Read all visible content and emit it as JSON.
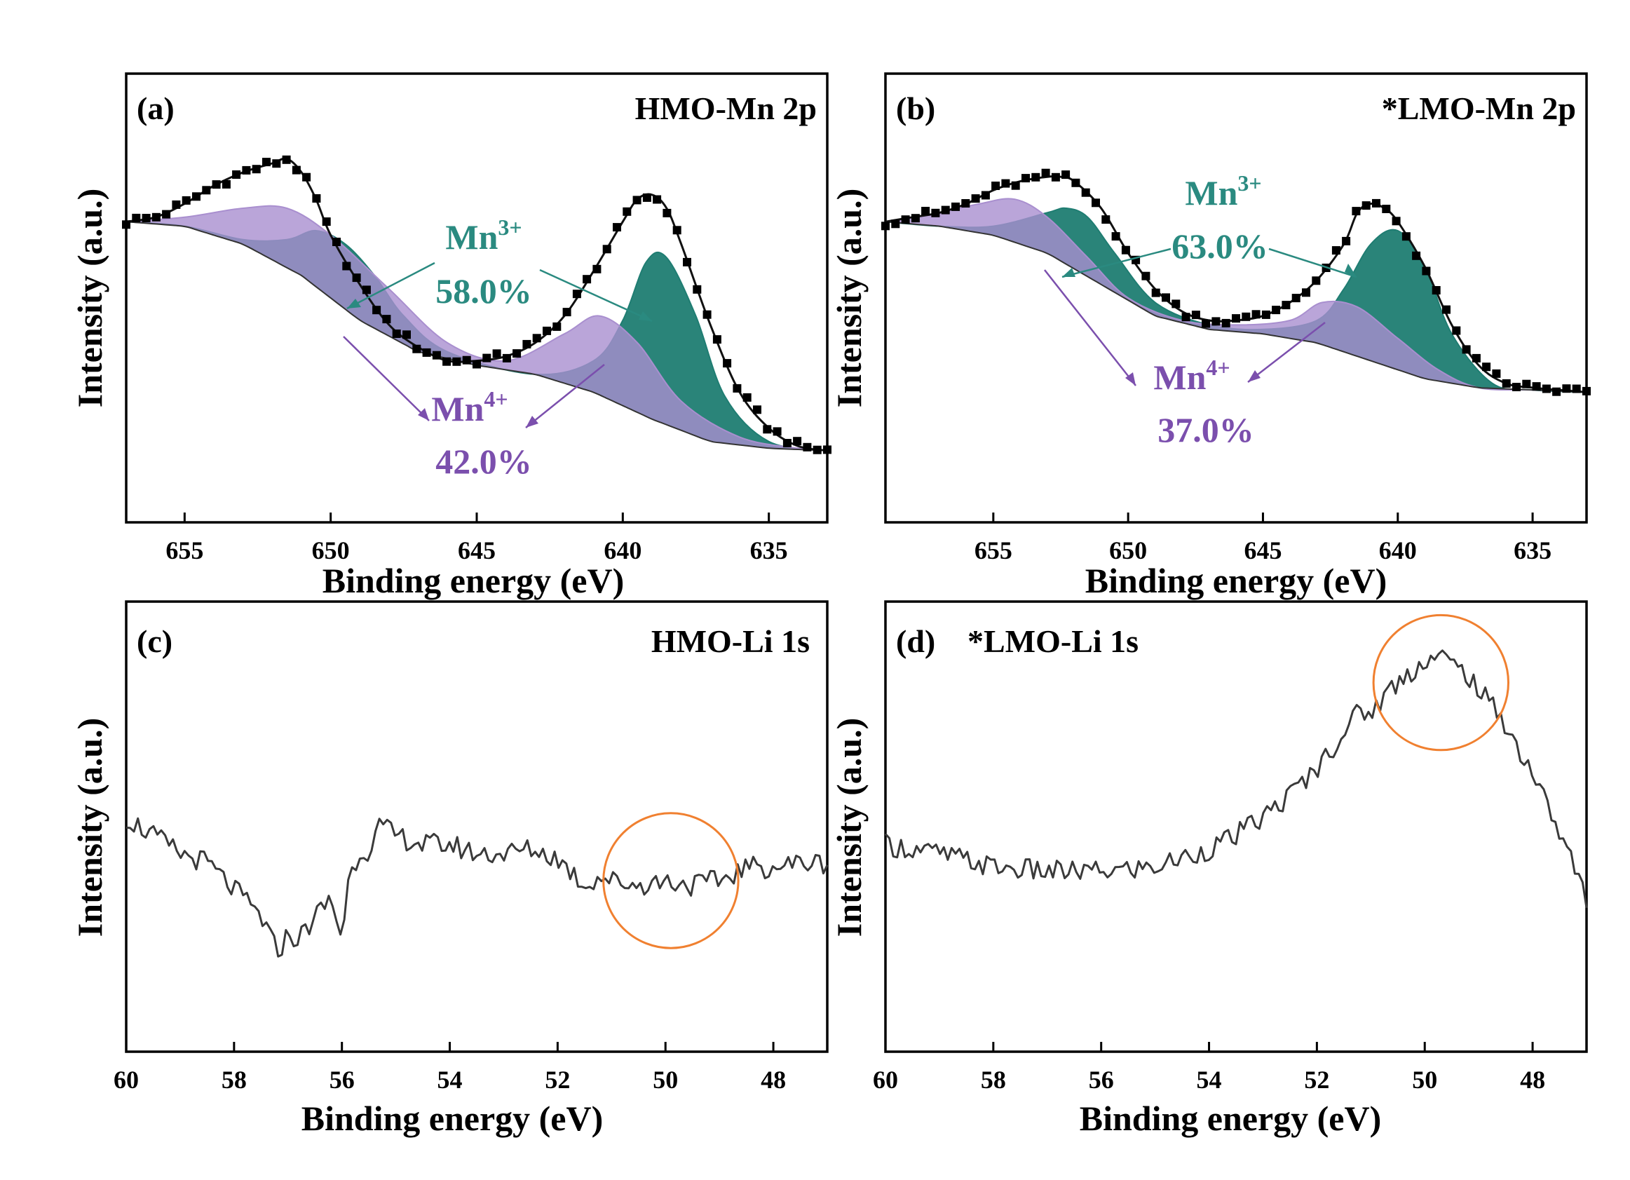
{
  "colors": {
    "mn3": "#2a8a80",
    "mn4": "#7b4fad",
    "mn3_fill": "#1f7d72",
    "mn4_fill": "#a98fcf",
    "circle": "#f08030",
    "trace": "#3a3a3a",
    "data": "#000000"
  },
  "chart_data": [
    {
      "id": "a",
      "type": "line",
      "panel_label": "(a)",
      "title": "HMO-Mn 2p",
      "xlabel": "Binding energy (eV)",
      "ylabel": "Intensity (a.u.)",
      "xlim": [
        657,
        633
      ],
      "ylim": [
        0,
        1
      ],
      "xticks": [
        655,
        650,
        645,
        640,
        635
      ],
      "annotations": {
        "mn3_ion": "Mn",
        "mn3_sup": "3+",
        "mn3_pct": "58.0%",
        "mn4_ion": "Mn",
        "mn4_sup": "4+",
        "mn4_pct": "42.0%"
      },
      "baseline": {
        "x": [
          657,
          655,
          653,
          651,
          649,
          647,
          645,
          643,
          641,
          639,
          637,
          635,
          633
        ],
        "y": [
          0.67,
          0.66,
          0.62,
          0.55,
          0.45,
          0.38,
          0.35,
          0.33,
          0.29,
          0.23,
          0.18,
          0.165,
          0.16
        ]
      },
      "series": [
        {
          "name": "Mn4+",
          "x": [
            657,
            655,
            653,
            651.5,
            650,
            648,
            646,
            644,
            642,
            640.8,
            639.5,
            638,
            636,
            634,
            633
          ],
          "y": [
            0.67,
            0.68,
            0.7,
            0.7,
            0.64,
            0.52,
            0.4,
            0.36,
            0.42,
            0.46,
            0.4,
            0.27,
            0.19,
            0.165,
            0.16
          ]
        },
        {
          "name": "Mn3+",
          "x": [
            657,
            655,
            653,
            651.5,
            650.5,
            649.5,
            648.5,
            647.5,
            646,
            643,
            641,
            640,
            639.2,
            638.5,
            637.5,
            636.5,
            635,
            633
          ],
          "y": [
            0.67,
            0.66,
            0.63,
            0.63,
            0.65,
            0.62,
            0.55,
            0.46,
            0.38,
            0.33,
            0.36,
            0.45,
            0.58,
            0.59,
            0.46,
            0.28,
            0.18,
            0.16
          ]
        },
        {
          "name": "Raw data",
          "x": [
            657,
            656,
            655,
            654,
            653,
            652,
            651.5,
            651,
            650.5,
            650,
            649,
            648,
            647,
            646,
            645,
            644,
            643,
            642,
            641,
            640,
            639.5,
            639,
            638.5,
            638,
            637,
            636,
            635,
            634,
            633
          ],
          "y": [
            0.67,
            0.68,
            0.71,
            0.75,
            0.78,
            0.8,
            0.81,
            0.78,
            0.72,
            0.64,
            0.53,
            0.44,
            0.39,
            0.36,
            0.36,
            0.37,
            0.4,
            0.46,
            0.56,
            0.67,
            0.72,
            0.73,
            0.7,
            0.62,
            0.44,
            0.29,
            0.21,
            0.17,
            0.16
          ]
        }
      ]
    },
    {
      "id": "b",
      "type": "line",
      "panel_label": "(b)",
      "title": "*LMO-Mn 2p",
      "xlabel": "Binding energy (eV)",
      "ylabel": "Intensity (a.u.)",
      "xlim": [
        659,
        633
      ],
      "ylim": [
        0,
        1
      ],
      "xticks": [
        655,
        650,
        645,
        640,
        635
      ],
      "annotations": {
        "mn3_ion": "Mn",
        "mn3_sup": "3+",
        "mn3_pct": "63.0%",
        "mn4_ion": "Mn",
        "mn4_sup": "4+",
        "mn4_pct": "37.0%"
      },
      "baseline": {
        "x": [
          659,
          657,
          655,
          653,
          651,
          649,
          647,
          645,
          643,
          641,
          639,
          637,
          635,
          633
        ],
        "y": [
          0.67,
          0.66,
          0.64,
          0.6,
          0.53,
          0.46,
          0.43,
          0.42,
          0.4,
          0.36,
          0.32,
          0.3,
          0.295,
          0.29
        ]
      },
      "series": [
        {
          "name": "Mn4+",
          "x": [
            659,
            657,
            655.5,
            654.2,
            653,
            651.5,
            650,
            648,
            646,
            644,
            642.8,
            641.5,
            640,
            638.5,
            637,
            635,
            633
          ],
          "y": [
            0.67,
            0.69,
            0.71,
            0.72,
            0.68,
            0.59,
            0.5,
            0.45,
            0.44,
            0.45,
            0.49,
            0.48,
            0.41,
            0.34,
            0.3,
            0.295,
            0.29
          ]
        },
        {
          "name": "Mn3+",
          "x": [
            659,
            657,
            655,
            653,
            652.3,
            651.5,
            650.5,
            649,
            647,
            645,
            643,
            642,
            641,
            640,
            639,
            638,
            636.5,
            635,
            633
          ],
          "y": [
            0.67,
            0.66,
            0.66,
            0.69,
            0.7,
            0.68,
            0.6,
            0.49,
            0.44,
            0.43,
            0.45,
            0.52,
            0.62,
            0.65,
            0.57,
            0.42,
            0.31,
            0.295,
            0.29
          ]
        },
        {
          "name": "Raw data",
          "x": [
            659,
            658,
            657,
            656,
            655,
            654,
            653,
            652.5,
            652,
            651,
            650,
            649,
            648,
            647,
            646,
            645,
            644,
            643,
            642,
            641.5,
            641,
            640.5,
            640,
            639,
            638,
            637,
            636,
            635,
            634,
            633
          ],
          "y": [
            0.67,
            0.68,
            0.69,
            0.71,
            0.74,
            0.76,
            0.77,
            0.77,
            0.76,
            0.7,
            0.6,
            0.52,
            0.47,
            0.45,
            0.45,
            0.46,
            0.49,
            0.54,
            0.62,
            0.69,
            0.71,
            0.7,
            0.67,
            0.57,
            0.44,
            0.35,
            0.31,
            0.3,
            0.295,
            0.29
          ]
        }
      ]
    },
    {
      "id": "c",
      "type": "line",
      "panel_label": "(c)",
      "title": "HMO-Li 1s",
      "xlabel": "Binding energy (eV)",
      "ylabel": "Intensity (a.u.)",
      "xlim": [
        60,
        47
      ],
      "ylim": [
        0,
        1
      ],
      "xticks": [
        60,
        58,
        56,
        54,
        52,
        50,
        48
      ],
      "highlight": {
        "x": 49.9,
        "y": 0.38,
        "radius_ev": 1.25
      },
      "series": [
        {
          "name": "Li 1s",
          "x": [
            60,
            59.5,
            59,
            58.5,
            58,
            57.5,
            57.2,
            57,
            56.8,
            56.5,
            56.2,
            56,
            55.9,
            55.7,
            55.5,
            55.3,
            55,
            54.5,
            54,
            53.5,
            53,
            52.5,
            52,
            51.5,
            51.2,
            51,
            50.5,
            50,
            49.5,
            49,
            48.5,
            48,
            47.5,
            47
          ],
          "y": [
            0.52,
            0.48,
            0.44,
            0.42,
            0.36,
            0.3,
            0.22,
            0.26,
            0.25,
            0.3,
            0.34,
            0.25,
            0.37,
            0.44,
            0.45,
            0.5,
            0.48,
            0.46,
            0.46,
            0.44,
            0.44,
            0.45,
            0.43,
            0.37,
            0.39,
            0.38,
            0.37,
            0.38,
            0.37,
            0.38,
            0.41,
            0.41,
            0.42,
            0.42
          ]
        }
      ]
    },
    {
      "id": "d",
      "type": "line",
      "panel_label": "(d)",
      "title": "*LMO-Li 1s",
      "xlabel": "Binding energy (eV)",
      "ylabel": "Intensity (a.u.)",
      "xlim": [
        60,
        47
      ],
      "ylim": [
        0,
        1
      ],
      "xticks": [
        60,
        58,
        56,
        54,
        52,
        50,
        48
      ],
      "highlight": {
        "x": 49.7,
        "y": 0.82,
        "radius_ev": 1.25
      },
      "series": [
        {
          "name": "Li 1s",
          "x": [
            60,
            59,
            58,
            57,
            56,
            55,
            54.5,
            54,
            53.5,
            53,
            52.5,
            52,
            51.5,
            51.2,
            51,
            50.7,
            50.3,
            50,
            49.7,
            49.5,
            49.2,
            49,
            48.6,
            48.3,
            48,
            47.7,
            47.4,
            47.2,
            47
          ],
          "y": [
            0.46,
            0.44,
            0.41,
            0.4,
            0.4,
            0.41,
            0.43,
            0.45,
            0.48,
            0.52,
            0.57,
            0.63,
            0.71,
            0.76,
            0.75,
            0.8,
            0.84,
            0.87,
            0.88,
            0.86,
            0.84,
            0.8,
            0.75,
            0.68,
            0.62,
            0.54,
            0.46,
            0.4,
            0.34
          ]
        }
      ]
    }
  ]
}
